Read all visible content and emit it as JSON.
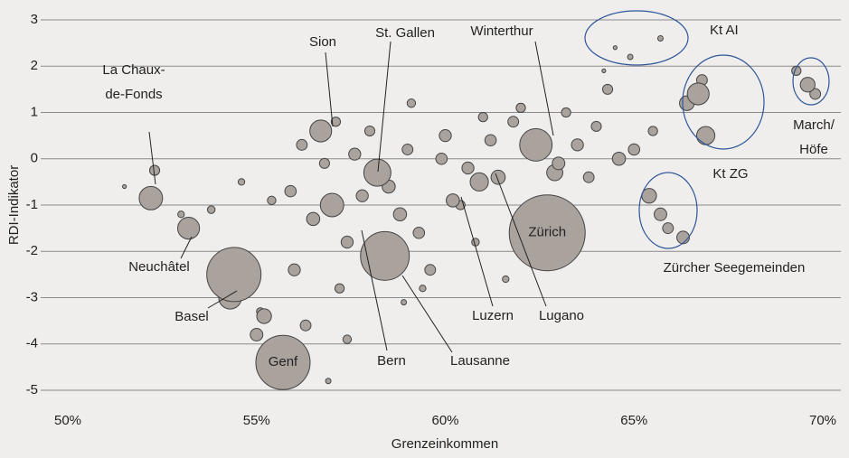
{
  "chart_data": {
    "type": "bubble",
    "xlabel": "Grenzeinkommen",
    "ylabel": "RDI-Indikator",
    "xlim": [
      50,
      70
    ],
    "ylim": [
      -5,
      3
    ],
    "xticks": [
      {
        "value": 50,
        "label": "50%"
      },
      {
        "value": 55,
        "label": "55%"
      },
      {
        "value": 60,
        "label": "60%"
      },
      {
        "value": 65,
        "label": "65%"
      },
      {
        "value": 70,
        "label": "70%"
      }
    ],
    "yticks": [
      -5,
      -4,
      -3,
      -2,
      -1,
      0,
      1,
      2,
      3
    ],
    "grid": true,
    "color": "#aaa29d",
    "series": [
      {
        "x": [
          62.7,
          55.7,
          54.4,
          58.4,
          57.0,
          60.9,
          62.4,
          58.2,
          56.7,
          53.2,
          52.2,
          64.5,
          64.9,
          65.7,
          64.2,
          66.7,
          66.9,
          66.4,
          66.8,
          69.6,
          69.3,
          69.8,
          65.4,
          65.7,
          65.9,
          66.3,
          54.3,
          55.2,
          55.0,
          56.3,
          56.0,
          57.2,
          57.4,
          56.5,
          57.8,
          58.8,
          59.3,
          59.6,
          60.2,
          60.6,
          61.2,
          61.8,
          62.0,
          61.4,
          60.0,
          59.0,
          58.5,
          57.6,
          56.8,
          55.9,
          56.2,
          57.1,
          58.0,
          59.9,
          60.4,
          63.0,
          63.5,
          64.0,
          64.6,
          63.8,
          65.0,
          65.5,
          64.3,
          63.2,
          52.3,
          51.5,
          53.0,
          53.8,
          54.6,
          55.4,
          60.8,
          61.6,
          59.4,
          58.9,
          57.4,
          56.9,
          62.9,
          61.0,
          59.1,
          55.1
        ],
        "values": [
          -1.6,
          -4.4,
          -2.5,
          -2.1,
          -1.0,
          -0.5,
          0.3,
          -0.3,
          0.6,
          -1.5,
          -0.85,
          2.4,
          2.2,
          2.6,
          1.9,
          1.4,
          0.5,
          1.2,
          1.7,
          1.6,
          1.9,
          1.4,
          -0.8,
          -1.2,
          -1.5,
          -1.7,
          -3.0,
          -3.4,
          -3.8,
          -3.6,
          -2.4,
          -2.8,
          -1.8,
          -1.3,
          -0.8,
          -1.2,
          -1.6,
          -2.4,
          -0.9,
          -0.2,
          0.4,
          0.8,
          1.1,
          -0.4,
          0.5,
          0.2,
          -0.6,
          0.1,
          -0.1,
          -0.7,
          0.3,
          0.8,
          0.6,
          0.0,
          -1.0,
          -0.1,
          0.3,
          0.7,
          0.0,
          -0.4,
          0.2,
          0.6,
          1.5,
          1.0,
          -0.25,
          -0.6,
          -1.2,
          -1.1,
          -0.5,
          -0.9,
          -1.8,
          -2.6,
          -2.8,
          -3.1,
          -3.9,
          -4.8,
          -0.3,
          0.9,
          1.2,
          -3.3
        ],
        "sizes": [
          400,
          204,
          204,
          165,
          38,
          23,
          73,
          51,
          33,
          33,
          38,
          1,
          2,
          2,
          1,
          33,
          23,
          15,
          8,
          15,
          6,
          8,
          15,
          11,
          8,
          11,
          36,
          15,
          11,
          8,
          10,
          6,
          10,
          12,
          10,
          12,
          9,
          8,
          12,
          10,
          9,
          8,
          6,
          14,
          10,
          8,
          12,
          10,
          7,
          9,
          8,
          6,
          7,
          9,
          6,
          11,
          10,
          7,
          12,
          8,
          9,
          6,
          7,
          6,
          7,
          1,
          3,
          4,
          3,
          5,
          4,
          3,
          3,
          2,
          5,
          2,
          18,
          6,
          5,
          4
        ]
      }
    ],
    "annotations": [
      {
        "text": [
          "Sion"
        ]
      },
      {
        "text": [
          "St. Gallen"
        ]
      },
      {
        "text": [
          "Winterthur"
        ]
      },
      {
        "text": [
          "Kt AI"
        ]
      },
      {
        "text": [
          "La Chaux-",
          "de-Fonds"
        ]
      },
      {
        "text": [
          "Kt ZG"
        ]
      },
      {
        "text": [
          "March/",
          "Höfe"
        ]
      },
      {
        "text": [
          "Neuchâtel"
        ]
      },
      {
        "text": [
          "Basel"
        ]
      },
      {
        "text": [
          "Zürcher Seegemeinden"
        ]
      },
      {
        "text": [
          "Luzern"
        ]
      },
      {
        "text": [
          "Lugano"
        ]
      },
      {
        "text": [
          "Bern"
        ]
      },
      {
        "text": [
          "Lausanne"
        ]
      },
      {
        "text": [
          "Zürich"
        ]
      },
      {
        "text": [
          "Genf"
        ]
      }
    ]
  }
}
